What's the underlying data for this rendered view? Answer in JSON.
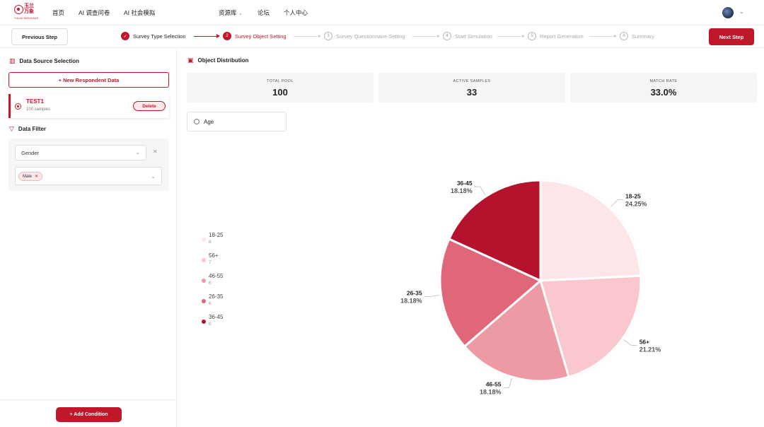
{
  "brand": {
    "name_cn": "玉兰万象",
    "name_en": "YULAN·WANXIANG"
  },
  "nav": {
    "items": [
      "首页",
      "AI 调查问卷",
      "AI 社会模拟",
      "资源库",
      "论坛",
      "个人中心"
    ]
  },
  "steps": {
    "prev_label": "Previous Step",
    "next_label": "Next Step",
    "items": [
      {
        "num": "✓",
        "label": "Survey Type Selection",
        "state": "done"
      },
      {
        "num": "2",
        "label": "Survey Object Setting",
        "state": "active"
      },
      {
        "num": "3",
        "label": "Survey Questionnaire Setting",
        "state": "todo"
      },
      {
        "num": "4",
        "label": "Start Simulation",
        "state": "todo"
      },
      {
        "num": "5",
        "label": "Report Generation",
        "state": "todo"
      },
      {
        "num": "6",
        "label": "Summary",
        "state": "todo"
      }
    ]
  },
  "left": {
    "data_source_title": "Data Source Selection",
    "new_button": "+ New Respondent Data",
    "source": {
      "name": "TEST1",
      "count": "100 samples",
      "delete_label": "Delete"
    },
    "filter_title": "Data Filter",
    "filter": {
      "field": "Gender",
      "tag": "Male"
    },
    "add_condition": "+ Add Condition"
  },
  "right": {
    "title": "Object Distribution",
    "stats": [
      {
        "label": "TOTAL POOL",
        "value": "100"
      },
      {
        "label": "ACTIVE SAMPLES",
        "value": "33"
      },
      {
        "label": "MATCH RATE",
        "value": "33.0%"
      }
    ],
    "search_value": "Age"
  },
  "colors": {
    "accent": "#c0182a",
    "bg_card": "#f5f5f6"
  },
  "chart_data": {
    "type": "pie",
    "slices": [
      {
        "name": "18-25",
        "count": 8,
        "percent": "24.25%",
        "color": "#fde6e8"
      },
      {
        "name": "56+",
        "count": 7,
        "percent": "21.21%",
        "color": "#f9c7cd"
      },
      {
        "name": "46-55",
        "count": 6,
        "percent": "18.18%",
        "color": "#ee9aa5"
      },
      {
        "name": "26-35",
        "count": 6,
        "percent": "18.18%",
        "color": "#e0677a"
      },
      {
        "name": "36-45",
        "count": 6,
        "percent": "18.18%",
        "color": "#b5132d"
      }
    ]
  }
}
